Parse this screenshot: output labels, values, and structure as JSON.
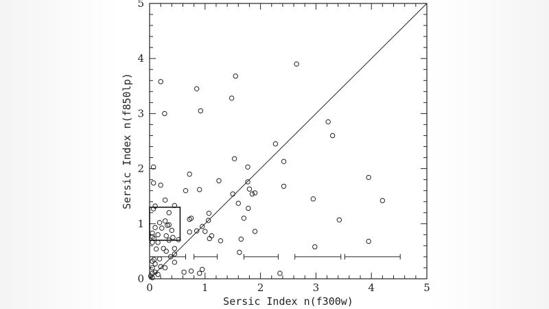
{
  "chart_data": {
    "type": "scatter",
    "xlabel": "Sersic Index n(f300w)",
    "ylabel": "Sersic Index n(f850lp)",
    "xlim": [
      0,
      5
    ],
    "ylim": [
      0,
      5
    ],
    "xticks": [
      "0",
      "1",
      "2",
      "3",
      "4",
      "5"
    ],
    "yticks": [
      "0",
      "1",
      "2",
      "3",
      "4",
      "5"
    ],
    "grid": false,
    "reference_line": {
      "label": "",
      "from": [
        0,
        0
      ],
      "to": [
        5,
        5
      ]
    },
    "box_annotation": {
      "x": [
        0,
        0.55
      ],
      "y": [
        0.7,
        1.3
      ]
    },
    "error_bars": [
      {
        "x": [
          0.0,
          0.65
        ],
        "y": 0.4
      },
      {
        "x": [
          0.8,
          1.22
        ],
        "y": 0.4
      },
      {
        "x": [
          1.7,
          2.32
        ],
        "y": 0.4
      },
      {
        "x": [
          2.62,
          3.45
        ],
        "y": 0.4
      },
      {
        "x": [
          3.52,
          4.52
        ],
        "y": 0.4
      }
    ],
    "points": [
      {
        "x": 2.65,
        "y": 3.9
      },
      {
        "x": 1.55,
        "y": 3.68
      },
      {
        "x": 0.2,
        "y": 3.58
      },
      {
        "x": 0.85,
        "y": 3.45
      },
      {
        "x": 1.48,
        "y": 3.28
      },
      {
        "x": 0.92,
        "y": 3.05
      },
      {
        "x": 0.27,
        "y": 3.0
      },
      {
        "x": 3.22,
        "y": 2.85
      },
      {
        "x": 3.3,
        "y": 2.6
      },
      {
        "x": 2.27,
        "y": 2.45
      },
      {
        "x": 1.53,
        "y": 2.18
      },
      {
        "x": 2.42,
        "y": 2.13
      },
      {
        "x": 0.07,
        "y": 2.03
      },
      {
        "x": 1.77,
        "y": 2.03
      },
      {
        "x": 0.72,
        "y": 1.9
      },
      {
        "x": 3.95,
        "y": 1.84
      },
      {
        "x": 1.25,
        "y": 1.78
      },
      {
        "x": 1.77,
        "y": 1.76
      },
      {
        "x": 0.07,
        "y": 1.74
      },
      {
        "x": 0.2,
        "y": 1.7
      },
      {
        "x": 2.42,
        "y": 1.68
      },
      {
        "x": 1.8,
        "y": 1.63
      },
      {
        "x": 0.9,
        "y": 1.62
      },
      {
        "x": 0.65,
        "y": 1.6
      },
      {
        "x": 1.9,
        "y": 1.56
      },
      {
        "x": 1.85,
        "y": 1.54
      },
      {
        "x": 1.5,
        "y": 1.54
      },
      {
        "x": 2.95,
        "y": 1.45
      },
      {
        "x": 4.2,
        "y": 1.42
      },
      {
        "x": 0.28,
        "y": 1.43
      },
      {
        "x": 1.6,
        "y": 1.37
      },
      {
        "x": 0.45,
        "y": 1.33
      },
      {
        "x": 0.1,
        "y": 1.32
      },
      {
        "x": 1.78,
        "y": 1.28
      },
      {
        "x": 0.07,
        "y": 1.27
      },
      {
        "x": 0.35,
        "y": 1.2
      },
      {
        "x": 1.07,
        "y": 1.19
      },
      {
        "x": 1.7,
        "y": 1.1
      },
      {
        "x": 0.75,
        "y": 1.1
      },
      {
        "x": 0.72,
        "y": 1.08
      },
      {
        "x": 3.42,
        "y": 1.07
      },
      {
        "x": 1.06,
        "y": 1.06
      },
      {
        "x": 0.28,
        "y": 1.05
      },
      {
        "x": 0.18,
        "y": 1.02
      },
      {
        "x": 0.35,
        "y": 0.98
      },
      {
        "x": 0.32,
        "y": 0.97
      },
      {
        "x": 0.95,
        "y": 0.95
      },
      {
        "x": 0.1,
        "y": 0.93
      },
      {
        "x": 0.22,
        "y": 0.92
      },
      {
        "x": 0.4,
        "y": 0.88
      },
      {
        "x": 0.85,
        "y": 0.87
      },
      {
        "x": 1.0,
        "y": 0.86
      },
      {
        "x": 0.72,
        "y": 0.85
      },
      {
        "x": 1.9,
        "y": 0.86
      },
      {
        "x": 0.05,
        "y": 0.83
      },
      {
        "x": 0.15,
        "y": 0.8
      },
      {
        "x": 0.3,
        "y": 0.78
      },
      {
        "x": 1.12,
        "y": 0.78
      },
      {
        "x": 0.05,
        "y": 0.76
      },
      {
        "x": 0.42,
        "y": 0.75
      },
      {
        "x": 0.08,
        "y": 0.73
      },
      {
        "x": 1.08,
        "y": 0.73
      },
      {
        "x": 1.65,
        "y": 0.72
      },
      {
        "x": 0.35,
        "y": 0.7
      },
      {
        "x": 0.52,
        "y": 0.71
      },
      {
        "x": 1.28,
        "y": 0.69
      },
      {
        "x": 0.15,
        "y": 0.66
      },
      {
        "x": 0.05,
        "y": 0.66
      },
      {
        "x": 3.95,
        "y": 0.68
      },
      {
        "x": 2.98,
        "y": 0.58
      },
      {
        "x": 0.25,
        "y": 0.55
      },
      {
        "x": 0.45,
        "y": 0.55
      },
      {
        "x": 0.12,
        "y": 0.54
      },
      {
        "x": 0.3,
        "y": 0.5
      },
      {
        "x": 1.62,
        "y": 0.48
      },
      {
        "x": 0.45,
        "y": 0.45
      },
      {
        "x": 0.38,
        "y": 0.4
      },
      {
        "x": 0.18,
        "y": 0.36
      },
      {
        "x": 0.08,
        "y": 0.35
      },
      {
        "x": 0.05,
        "y": 0.32
      },
      {
        "x": 0.45,
        "y": 0.3
      },
      {
        "x": 0.1,
        "y": 0.27
      },
      {
        "x": 0.2,
        "y": 0.22
      },
      {
        "x": 0.28,
        "y": 0.2
      },
      {
        "x": 0.05,
        "y": 0.2
      },
      {
        "x": 0.95,
        "y": 0.17
      },
      {
        "x": 0.75,
        "y": 0.14
      },
      {
        "x": 0.62,
        "y": 0.12
      },
      {
        "x": 0.1,
        "y": 0.12
      },
      {
        "x": 2.35,
        "y": 0.1
      },
      {
        "x": 0.05,
        "y": 0.1
      },
      {
        "x": 0.9,
        "y": 0.1
      },
      {
        "x": 0.15,
        "y": 0.08
      },
      {
        "x": 0.02,
        "y": 0.05
      },
      {
        "x": 0.05,
        "y": 0.02
      }
    ]
  }
}
